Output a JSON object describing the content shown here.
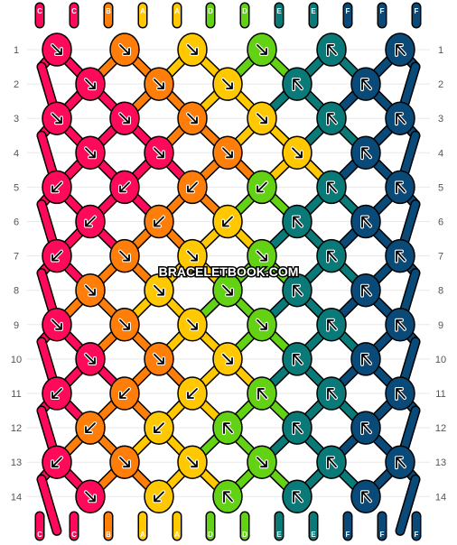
{
  "watermark": "BRACELETBOOK.COM",
  "colors": {
    "C": "#ff0a5a",
    "B": "#ff7e0a",
    "A": "#ffc800",
    "D": "#63d214",
    "E": "#0a7a78",
    "F": "#0a4a78"
  },
  "strings_top": [
    "C",
    "C",
    "B",
    "A",
    "A",
    "D",
    "D",
    "E",
    "E",
    "F",
    "F",
    "F"
  ],
  "strings_bottom": [
    "C",
    "C",
    "B",
    "A",
    "A",
    "D",
    "D",
    "E",
    "E",
    "F",
    "F",
    "F"
  ],
  "row_numbers": [
    "1",
    "2",
    "3",
    "4",
    "5",
    "6",
    "7",
    "8",
    "9",
    "10",
    "11",
    "12",
    "13",
    "14"
  ],
  "knots": {
    "odd_rows": [
      [
        "C:↘",
        "B:↘",
        "A:↘",
        "D:↘",
        "E:↗",
        "F:↗"
      ],
      [
        "C:↘",
        "C:↘",
        "B:↘",
        "A:↘",
        "E:↗",
        "F:↗"
      ],
      [
        "C:↙",
        "C:↙",
        "B:↙",
        "D:↙",
        "E:↗",
        "F:↗"
      ],
      [
        "C:↙",
        "B:↘",
        "A:↘",
        "D:↘",
        "E:↗",
        "F:↗"
      ],
      [
        "C:↘",
        "B:↘",
        "A:↘",
        "D:↘",
        "E:↗",
        "F:↗"
      ],
      [
        "C:↙",
        "B:↙",
        "A:↙",
        "D:↗",
        "E:↗",
        "F:↗"
      ],
      [
        "C:↙",
        "B:↘",
        "A:↘",
        "D:↘",
        "E:↗",
        "F:↗"
      ]
    ],
    "even_rows": [
      [
        "C:↘",
        "B:↘",
        "A:↘",
        "E:↗",
        "F:↗"
      ],
      [
        "C:↘",
        "C:↘",
        "B:↘",
        "A:↘",
        "F:↗"
      ],
      [
        "C:↙",
        "B:↙",
        "A:↙",
        "E:↗",
        "F:↗"
      ],
      [
        "B:↘",
        "A:↘",
        "D:↘",
        "E:↗",
        "F:↗"
      ],
      [
        "C:↘",
        "B:↘",
        "A:↘",
        "E:↗",
        "F:↗"
      ],
      [
        "B:↙",
        "A:↙",
        "D:↗",
        "E:↗",
        "F:↗"
      ],
      [
        "C:↘",
        "A:↙",
        "D:↗",
        "E:↗",
        "F:↗"
      ]
    ]
  }
}
